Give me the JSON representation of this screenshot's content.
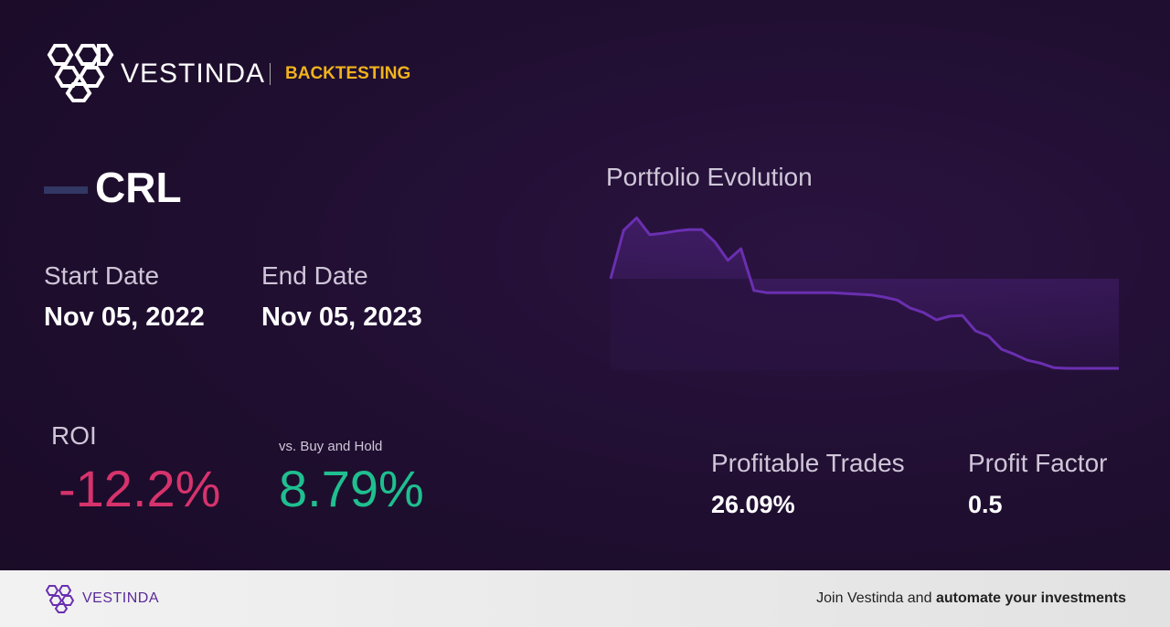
{
  "header": {
    "brand": "VESTINDA",
    "section": "BACKTESTING"
  },
  "asset": {
    "ticker": "CRL"
  },
  "dates": {
    "start_label": "Start Date",
    "start_value": "Nov 05, 2022",
    "end_label": "End Date",
    "end_value": "Nov 05, 2023"
  },
  "roi": {
    "label": "ROI",
    "value": "-12.2%",
    "compare_label": "vs. Buy and Hold",
    "compare_value": "8.79%"
  },
  "stats": [
    {
      "label": "Profitable Trades",
      "value": "26.09%"
    },
    {
      "label": "Profit Factor",
      "value": "0.5"
    }
  ],
  "chart_data": {
    "type": "line",
    "title": "Portfolio Evolution",
    "color": "#6a2fb0",
    "values": [
      0,
      6.6,
      8.3,
      6.0,
      6.2,
      6.5,
      6.7,
      6.7,
      5.0,
      2.5,
      4.1,
      -1.6,
      -1.9,
      -1.9,
      -1.9,
      -1.9,
      -1.9,
      -1.9,
      -2.0,
      -2.1,
      -2.2,
      -2.5,
      -2.9,
      -4.0,
      -4.6,
      -5.6,
      -5.1,
      -5.0,
      -7.1,
      -7.8,
      -9.6,
      -10.3,
      -11.1,
      -11.5,
      -12.1,
      -12.2,
      -12.2,
      -12.2,
      -12.2,
      -12.2
    ],
    "ylim": [
      -12.5,
      9
    ]
  },
  "footer": {
    "brand": "VESTINDA",
    "cta_plain": "Join Vestinda and",
    "cta_bold": "automate your investments"
  }
}
